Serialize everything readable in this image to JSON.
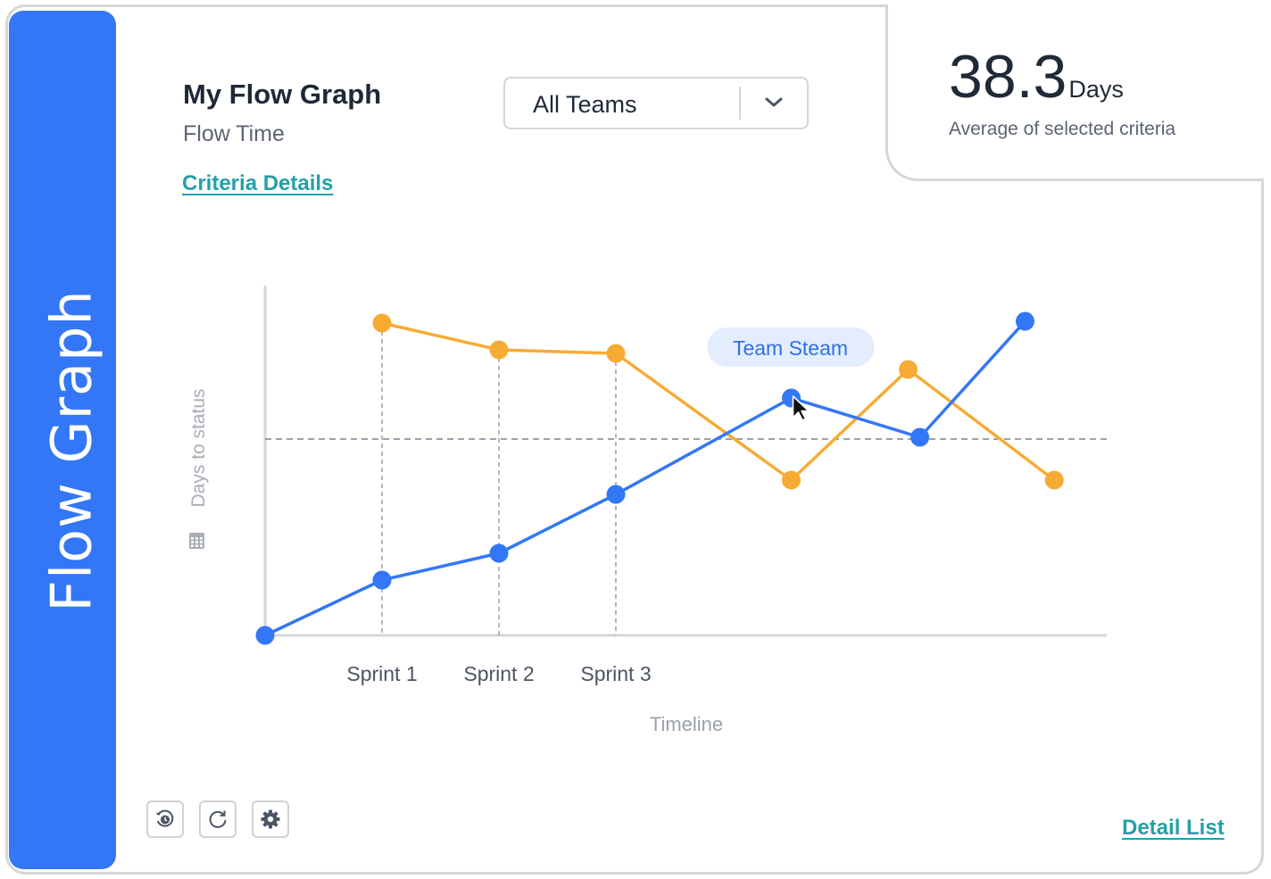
{
  "sidebar": {
    "label": "Flow Graph"
  },
  "header": {
    "title": "My Flow Graph",
    "subtitle": "Flow Time",
    "criteria_link": "Criteria Details"
  },
  "filter": {
    "selected": "All Teams",
    "icon": "chevron-down-icon"
  },
  "kpi": {
    "value": "38.3",
    "unit": "Days",
    "caption": "Average of selected criteria"
  },
  "chart_data": {
    "type": "line",
    "xlabel": "Timeline",
    "ylabel": "Days to status",
    "x": [
      0,
      1,
      2,
      3,
      4.5,
      5.6,
      6.6
    ],
    "categories": [
      {
        "x": 1,
        "label": "Sprint 1"
      },
      {
        "x": 2,
        "label": "Sprint 2"
      },
      {
        "x": 3,
        "label": "Sprint 3"
      }
    ],
    "reference_line": 5.5,
    "ylim": [
      0,
      10
    ],
    "xlim": [
      0,
      7.2
    ],
    "series": [
      {
        "name": "Team Steam",
        "color": "#3377f6",
        "points": [
          [
            0,
            0
          ],
          [
            1,
            1.55
          ],
          [
            2,
            2.3
          ],
          [
            3,
            3.95
          ],
          [
            4.5,
            6.65
          ],
          [
            5.6,
            5.55
          ],
          [
            6.5,
            8.8
          ]
        ]
      },
      {
        "name": "",
        "color": "#f7ab35",
        "points": [
          [
            1,
            8.75
          ],
          [
            2,
            8.0
          ],
          [
            3,
            7.9
          ],
          [
            4.5,
            4.35
          ],
          [
            5.5,
            7.45
          ],
          [
            6.75,
            4.35
          ]
        ]
      }
    ],
    "tooltip": {
      "text": "Team Steam"
    },
    "grid": false
  },
  "footer": {
    "tools": [
      {
        "name": "history-icon"
      },
      {
        "name": "refresh-icon"
      },
      {
        "name": "gear-icon"
      }
    ],
    "detail_link": "Detail List"
  }
}
